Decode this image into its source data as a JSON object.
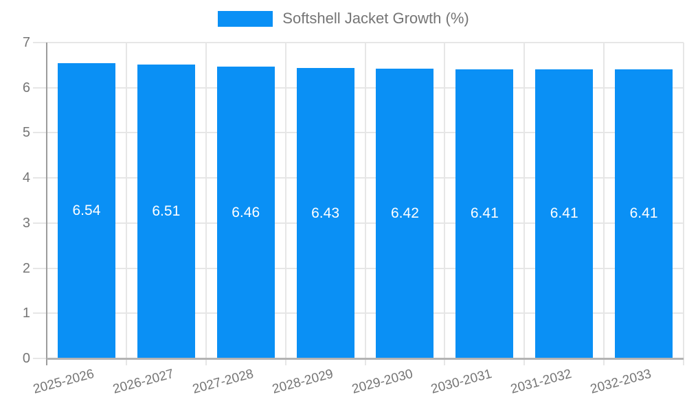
{
  "chart_data": {
    "type": "bar",
    "title": "",
    "legend_label": "Softshell Jacket Growth (%)",
    "legend_position": "top",
    "categories": [
      "2025-2026",
      "2026-2027",
      "2027-2028",
      "2028-2029",
      "2029-2030",
      "2030-2031",
      "2031-2032",
      "2032-2033"
    ],
    "values": [
      6.54,
      6.51,
      6.46,
      6.43,
      6.42,
      6.41,
      6.41,
      6.41
    ],
    "value_labels": [
      "6.54",
      "6.51",
      "6.46",
      "6.43",
      "6.42",
      "6.41",
      "6.41",
      "6.41"
    ],
    "xlabel": "",
    "ylabel": "",
    "ylim": [
      0,
      7
    ],
    "yticks": [
      0,
      1,
      2,
      3,
      4,
      5,
      6,
      7
    ],
    "grid": true,
    "colors": {
      "bar": "#0a90f5",
      "axis_text": "#757575",
      "gridline": "#e6e6e6",
      "y_axis_line": "#9c9c9c",
      "x_axis_line": "#b3b3b3",
      "value_label": "#ffffff",
      "background": "#ffffff"
    }
  }
}
